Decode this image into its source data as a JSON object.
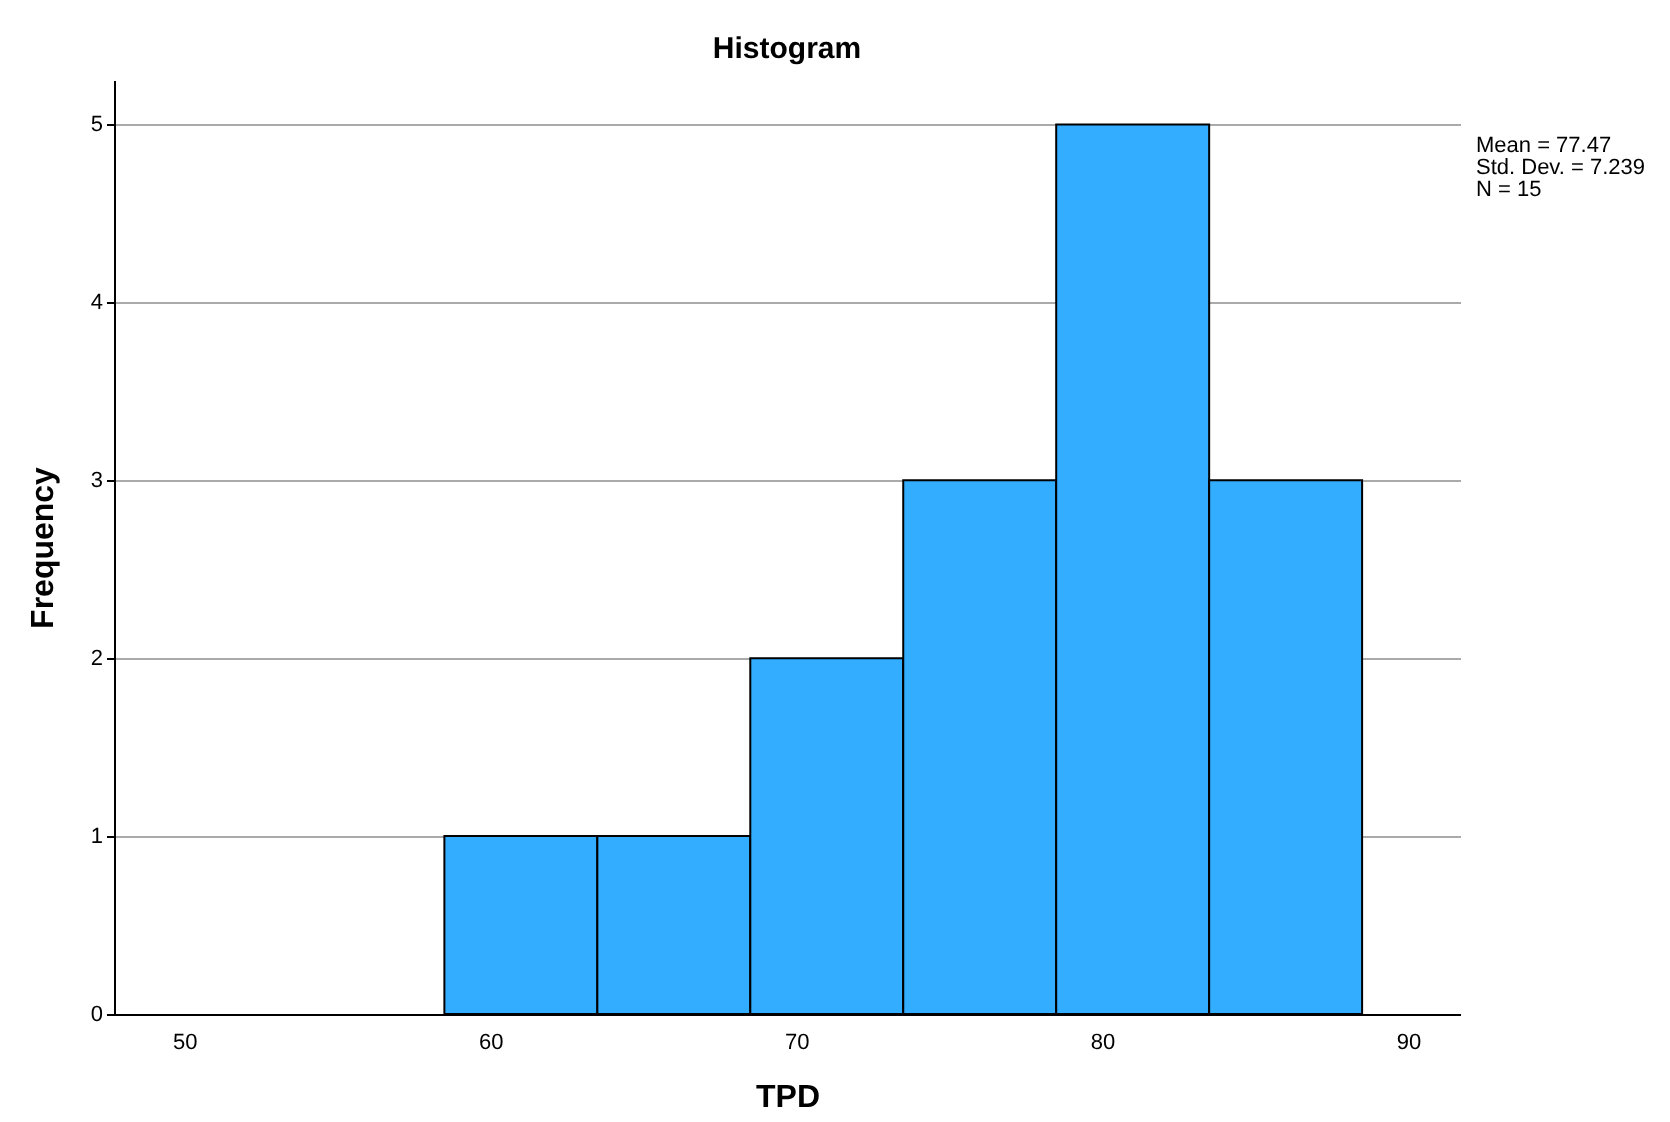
{
  "chart_data": {
    "type": "histogram",
    "title": "Histogram",
    "xlabel": "TPD",
    "ylabel": "Frequency",
    "bins": [
      58.5,
      63.5,
      68.5,
      73.5,
      78.5,
      83.5,
      88.5
    ],
    "values": [
      1,
      1,
      2,
      3,
      5,
      3
    ],
    "color": "#33adff",
    "xlim": [
      47.7,
      91.7
    ],
    "xticks": [
      50,
      60,
      70,
      80,
      90
    ],
    "ylim": [
      0,
      5.25
    ],
    "yticks": [
      0,
      1,
      2,
      3,
      4,
      5
    ],
    "grid": "y",
    "annotations": [
      "Mean = 77.47",
      "Std. Dev. = 7.239",
      "N = 15"
    ]
  }
}
